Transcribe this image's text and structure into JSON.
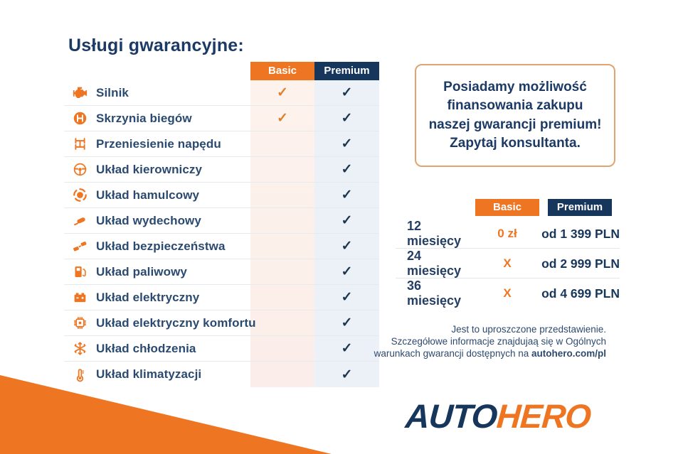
{
  "title": "Usługi gwarancyjne:",
  "colors": {
    "orange": "#ee7623",
    "navy": "#16365c",
    "basic_col_bg": "#fbf0ec",
    "premium_col_bg": "#ecf1f7"
  },
  "comparison_table": {
    "columns": [
      {
        "label": "Basic"
      },
      {
        "label": "Premium"
      }
    ],
    "check_symbol": "✓",
    "rows": [
      {
        "label": "Silnik",
        "icon": "engine-icon",
        "basic": true,
        "premium": true
      },
      {
        "label": "Skrzynia biegów",
        "icon": "gearbox-icon",
        "basic": true,
        "premium": true
      },
      {
        "label": "Przeniesienie napędu",
        "icon": "drivetrain-icon",
        "basic": false,
        "premium": true
      },
      {
        "label": "Układ kierowniczy",
        "icon": "steering-wheel-icon",
        "basic": false,
        "premium": true
      },
      {
        "label": "Układ hamulcowy",
        "icon": "brake-disc-icon",
        "basic": false,
        "premium": true
      },
      {
        "label": "Układ wydechowy",
        "icon": "exhaust-icon",
        "basic": false,
        "premium": true
      },
      {
        "label": "Układ bezpieczeństwa",
        "icon": "seatbelt-icon",
        "basic": false,
        "premium": true
      },
      {
        "label": "Układ paliwowy",
        "icon": "fuel-pump-icon",
        "basic": false,
        "premium": true
      },
      {
        "label": "Układ elektryczny",
        "icon": "battery-icon",
        "basic": false,
        "premium": true
      },
      {
        "label": "Układ elektryczny komfortu",
        "icon": "chip-icon",
        "basic": false,
        "premium": true
      },
      {
        "label": "Układ chłodzenia",
        "icon": "snowflake-icon",
        "basic": false,
        "premium": true
      },
      {
        "label": "Układ klimatyzacji",
        "icon": "thermometer-icon",
        "basic": false,
        "premium": true
      }
    ]
  },
  "promo_box": {
    "text": "Posiadamy możliwość\nfinansowania zakupu\nnaszej gwarancji premium!\nZapytaj konsultanta."
  },
  "pricing_table": {
    "columns": [
      {
        "label": "Basic"
      },
      {
        "label": "Premium"
      }
    ],
    "rows": [
      {
        "period": "12 miesięcy",
        "basic": "0 zł",
        "premium": "od 1 399 PLN"
      },
      {
        "period": "24 miesięcy",
        "basic": "X",
        "premium": "od 2 999 PLN"
      },
      {
        "period": "36 miesięcy",
        "basic": "X",
        "premium": "od 4 699 PLN"
      }
    ]
  },
  "disclaimer": {
    "line1": "Jest to uproszczone przedstawienie.",
    "line2": "Szczegółowe informacje znajdujaą się w Ogólnych",
    "line3_prefix": "warunkach gwarancji dostępnych na ",
    "line3_bold": "autohero.com/pl"
  },
  "logo": {
    "part1": "AUTO",
    "part2": "HERO"
  }
}
